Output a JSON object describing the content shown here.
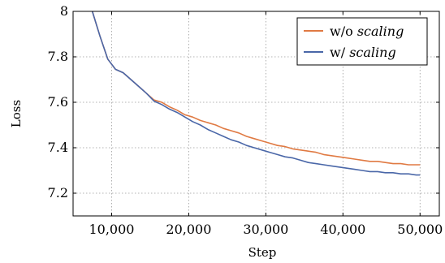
{
  "chart_data": {
    "type": "line",
    "title": "",
    "xlabel": "Step",
    "ylabel": "Loss",
    "xlim": [
      5000,
      52500
    ],
    "ylim": [
      7.1,
      8.0
    ],
    "grid": true,
    "legend_position": "top-right",
    "x_ticks": [
      {
        "value": 10000,
        "label": "10,000"
      },
      {
        "value": 20000,
        "label": "20,000"
      },
      {
        "value": 30000,
        "label": "30,000"
      },
      {
        "value": 40000,
        "label": "40,000"
      },
      {
        "value": 50000,
        "label": "50,000"
      }
    ],
    "y_ticks": [
      {
        "value": 7.2,
        "label": "7.2"
      },
      {
        "value": 7.4,
        "label": "7.4"
      },
      {
        "value": 7.6,
        "label": "7.6"
      },
      {
        "value": 7.8,
        "label": "7.8"
      },
      {
        "value": 8.0,
        "label": "8"
      }
    ],
    "series": [
      {
        "name": "w/o",
        "name_suffix": "scaling",
        "color": "#e07a43",
        "x": [
          7500,
          8500,
          9500,
          10500,
          11500,
          12500,
          13500,
          14500,
          15500,
          16500,
          17500,
          18500,
          19500,
          20500,
          21500,
          22500,
          23500,
          24500,
          25500,
          26500,
          27500,
          28500,
          29500,
          30500,
          31500,
          32500,
          33500,
          34500,
          35500,
          36500,
          37500,
          38500,
          39500,
          40500,
          41500,
          42500,
          43500,
          44500,
          45500,
          46500,
          47500,
          48500,
          49500,
          50000
        ],
        "y": [
          8.0,
          7.89,
          7.79,
          7.745,
          7.73,
          7.7,
          7.67,
          7.64,
          7.61,
          7.6,
          7.58,
          7.565,
          7.545,
          7.535,
          7.52,
          7.51,
          7.5,
          7.485,
          7.475,
          7.465,
          7.45,
          7.44,
          7.43,
          7.42,
          7.41,
          7.405,
          7.395,
          7.39,
          7.385,
          7.38,
          7.37,
          7.365,
          7.36,
          7.355,
          7.35,
          7.345,
          7.34,
          7.34,
          7.335,
          7.33,
          7.33,
          7.325,
          7.325,
          7.325
        ]
      },
      {
        "name": "w/",
        "name_suffix": "scaling",
        "color": "#4a67a8",
        "x": [
          7500,
          8500,
          9500,
          10500,
          11500,
          12500,
          13500,
          14500,
          15500,
          16500,
          17500,
          18500,
          19500,
          20500,
          21500,
          22500,
          23500,
          24500,
          25500,
          26500,
          27500,
          28500,
          29500,
          30500,
          31500,
          32500,
          33500,
          34500,
          35500,
          36500,
          37500,
          38500,
          39500,
          40500,
          41500,
          42500,
          43500,
          44500,
          45500,
          46500,
          47500,
          48500,
          49500,
          50000
        ],
        "y": [
          8.0,
          7.89,
          7.79,
          7.745,
          7.73,
          7.7,
          7.67,
          7.64,
          7.605,
          7.59,
          7.57,
          7.555,
          7.535,
          7.515,
          7.5,
          7.48,
          7.465,
          7.45,
          7.435,
          7.425,
          7.41,
          7.4,
          7.39,
          7.38,
          7.37,
          7.36,
          7.355,
          7.345,
          7.335,
          7.33,
          7.325,
          7.32,
          7.315,
          7.31,
          7.305,
          7.3,
          7.295,
          7.295,
          7.29,
          7.29,
          7.285,
          7.285,
          7.28,
          7.28
        ]
      }
    ]
  }
}
